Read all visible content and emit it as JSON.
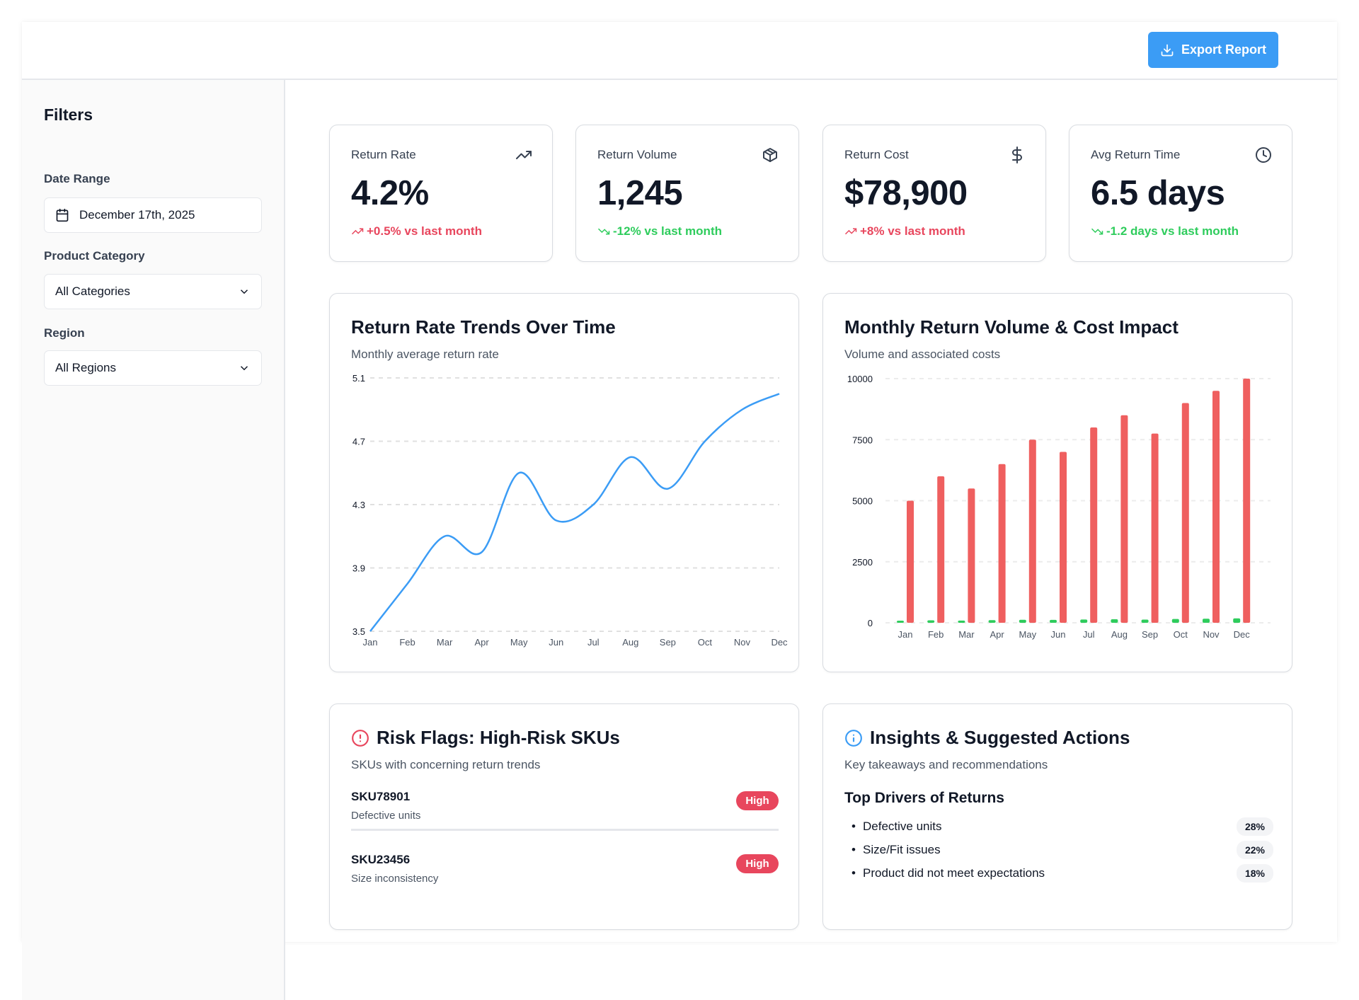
{
  "header": {
    "export_label": "Export Report",
    "export_icon": "download-icon"
  },
  "sidebar": {
    "title": "Filters",
    "date_range": {
      "label": "Date Range",
      "value": "December 17th, 2025",
      "icon": "calendar-icon"
    },
    "product_category": {
      "label": "Product Category",
      "value": "All Categories"
    },
    "region": {
      "label": "Region",
      "value": "All Regions"
    }
  },
  "kpis": [
    {
      "label": "Return Rate",
      "value": "4.2%",
      "delta": "+0.5% vs last month",
      "trend": "up",
      "icon": "trending-up-icon",
      "color": "#e8465d"
    },
    {
      "label": "Return Volume",
      "value": "1,245",
      "delta": "-12% vs last month",
      "trend": "down",
      "icon": "package-icon",
      "color": "#2ecc5c"
    },
    {
      "label": "Return Cost",
      "value": "$78,900",
      "delta": "+8% vs last month",
      "trend": "up",
      "icon": "dollar-sign-icon",
      "color": "#e8465d"
    },
    {
      "label": "Avg Return Time",
      "value": "6.5 days",
      "delta": "-1.2 days vs last month",
      "trend": "down",
      "icon": "clock-icon",
      "color": "#2ecc5c"
    }
  ],
  "line_card": {
    "title": "Return Rate Trends Over Time",
    "subtitle": "Monthly average return rate"
  },
  "bar_card": {
    "title": "Monthly Return Volume & Cost Impact",
    "subtitle": "Volume and associated costs"
  },
  "chart_data": [
    {
      "type": "line",
      "categories": [
        "Jan",
        "Feb",
        "Mar",
        "Apr",
        "May",
        "Jun",
        "Jul",
        "Aug",
        "Sep",
        "Oct",
        "Nov",
        "Dec"
      ],
      "values": [
        3.5,
        3.8,
        4.1,
        4.0,
        4.5,
        4.2,
        4.3,
        4.6,
        4.4,
        4.7,
        4.9,
        5.0
      ],
      "ylim": [
        3.5,
        5.1
      ],
      "yticks": [
        "3.5",
        "3.9",
        "4.3",
        "4.7",
        "5.1"
      ],
      "grid": true,
      "color": "#3b9cf5"
    },
    {
      "type": "bar",
      "categories": [
        "Jan",
        "Feb",
        "Mar",
        "Apr",
        "May",
        "Jun",
        "Jul",
        "Aug",
        "Sep",
        "Oct",
        "Nov",
        "Dec"
      ],
      "series": [
        {
          "values": [
            85,
            100,
            90,
            110,
            125,
            120,
            135,
            145,
            130,
            155,
            165,
            180
          ],
          "color": "#2ecc5c"
        },
        {
          "values": [
            5000,
            6000,
            5500,
            6500,
            7500,
            7000,
            8000,
            8500,
            7750,
            9000,
            9500,
            10000
          ],
          "color": "#ef5f5f"
        }
      ],
      "ylim": [
        0,
        10000
      ],
      "yticks": [
        "0",
        "2500",
        "5000",
        "7500",
        "10000"
      ],
      "grid": true
    }
  ],
  "risk": {
    "title": "Risk Flags: High-Risk SKUs",
    "subtitle": "SKUs with concerning return trends",
    "items": [
      {
        "sku": "SKU78901",
        "reason": "Defective units",
        "level": "High"
      },
      {
        "sku": "SKU23456",
        "reason": "Size inconsistency",
        "level": "High"
      }
    ]
  },
  "insights": {
    "title": "Insights & Suggested Actions",
    "subtitle": "Key takeaways and recommendations",
    "drivers_title": "Top Drivers of Returns",
    "drivers": [
      {
        "label": "Defective units",
        "pct": "28%"
      },
      {
        "label": "Size/Fit issues",
        "pct": "22%"
      },
      {
        "label": "Product did not meet expectations",
        "pct": "18%"
      }
    ]
  }
}
